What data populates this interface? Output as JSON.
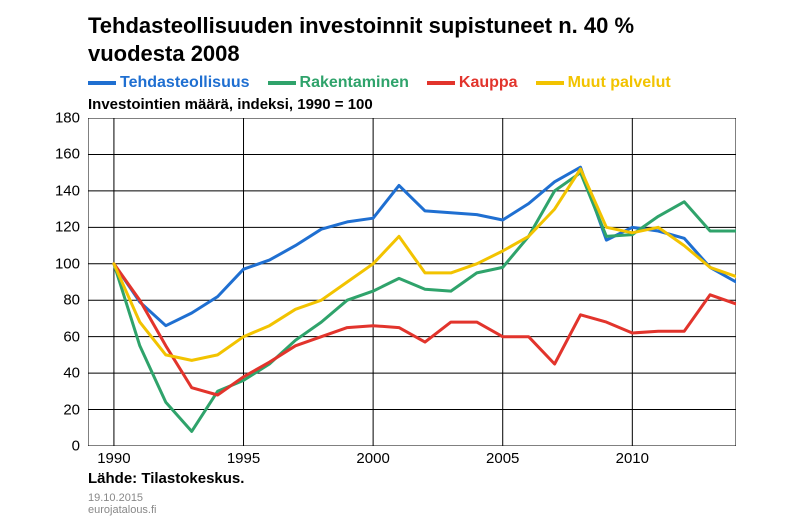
{
  "chart": {
    "type": "line",
    "title": "Tehdasteollisuuden investoinnit supistuneet n. 40 % vuodesta 2008",
    "subtitle": "Investointien määrä, indeksi, 1990 = 100",
    "source_label": "Lähde: Tilastokeskus.",
    "footer_date": "19.10.2015",
    "footer_site": "eurojatalous.fi",
    "background_color": "#ffffff",
    "grid_color": "#000000",
    "grid_width": 1,
    "line_width": 3,
    "title_fontsize": 22,
    "legend_fontsize": 16,
    "axis_label_fontsize": 15,
    "footer_fontsize": 11,
    "x": {
      "min": 1989,
      "max": 2014,
      "ticks": [
        1990,
        1995,
        2000,
        2005,
        2010
      ]
    },
    "y": {
      "min": 0,
      "max": 180,
      "ticks": [
        0,
        20,
        40,
        60,
        80,
        100,
        120,
        140,
        160,
        180
      ]
    },
    "years": [
      1990,
      1991,
      1992,
      1993,
      1994,
      1995,
      1996,
      1997,
      1998,
      1999,
      2000,
      2001,
      2002,
      2003,
      2004,
      2005,
      2006,
      2007,
      2008,
      2009,
      2010,
      2011,
      2012,
      2013,
      2014
    ],
    "series": [
      {
        "name": "Tehdasteollisuus",
        "color": "#1f6fd1",
        "values": [
          100,
          79,
          66,
          73,
          82,
          97,
          102,
          110,
          119,
          123,
          125,
          143,
          129,
          128,
          127,
          124,
          133,
          145,
          153,
          113,
          120,
          118,
          114,
          98,
          90
        ]
      },
      {
        "name": "Rakentaminen",
        "color": "#2fa36b",
        "values": [
          100,
          55,
          24,
          8,
          30,
          36,
          45,
          58,
          68,
          80,
          85,
          92,
          86,
          85,
          95,
          98,
          115,
          140,
          150,
          115,
          116,
          126,
          134,
          118,
          118
        ]
      },
      {
        "name": "Kauppa",
        "color": "#e2342c",
        "values": [
          100,
          80,
          55,
          32,
          28,
          38,
          46,
          55,
          60,
          65,
          66,
          65,
          57,
          68,
          68,
          60,
          60,
          45,
          72,
          68,
          62,
          63,
          63,
          83,
          78
        ]
      },
      {
        "name": "Muut palvelut",
        "color": "#f2c300",
        "values": [
          100,
          68,
          50,
          47,
          50,
          60,
          66,
          75,
          80,
          90,
          100,
          115,
          95,
          95,
          100,
          107,
          115,
          130,
          152,
          120,
          117,
          120,
          110,
          98,
          93
        ]
      }
    ]
  }
}
